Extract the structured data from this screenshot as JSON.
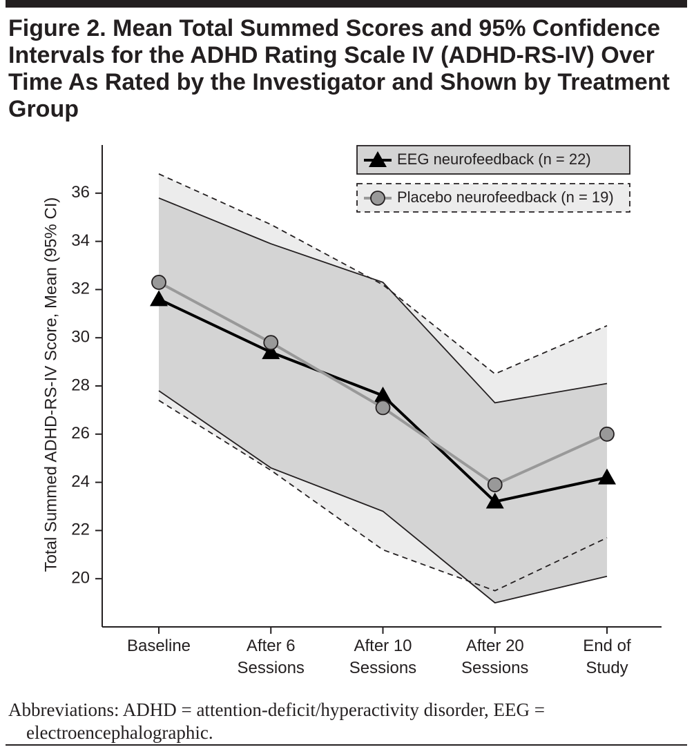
{
  "chart_data": {
    "type": "line",
    "title": "Figure 2. Mean Total Summed Scores and 95% Confidence Intervals for the ADHD Rating Scale IV (ADHD-RS-IV) Over Time As Rated by the Investigator and Shown by Treatment Group",
    "y_label": "Total Summed ADHD-RS-IV Score, Mean (95% CI)",
    "categories": [
      "Baseline",
      "After 6 Sessions",
      "After 10 Sessions",
      "After 20 Sessions",
      "End of Study"
    ],
    "ylim": [
      18,
      38
    ],
    "yticks": [
      20,
      22,
      24,
      26,
      28,
      30,
      32,
      34,
      36
    ],
    "legend": "top-right",
    "series": [
      {
        "name": "EEG neurofeedback (n = 22)",
        "color": "#000000",
        "marker": "triangle",
        "band_color": "#d4d4d4",
        "band_line": "solid",
        "values": [
          31.6,
          29.4,
          27.6,
          23.2,
          24.2
        ],
        "ci_upper": [
          35.8,
          33.9,
          32.3,
          27.3,
          28.1
        ],
        "ci_lower": [
          27.8,
          24.6,
          22.8,
          19.0,
          20.1
        ]
      },
      {
        "name": "Placebo neurofeedback (n = 19)",
        "color": "#999999",
        "marker": "circle",
        "band_color": "#ececec",
        "band_line": "dashed",
        "values": [
          32.3,
          29.8,
          27.1,
          23.9,
          26.0
        ],
        "ci_upper": [
          36.8,
          34.7,
          32.2,
          28.5,
          30.5
        ],
        "ci_lower": [
          27.4,
          24.5,
          21.2,
          19.5,
          21.7
        ]
      }
    ],
    "footnote": "Abbreviations: ADHD = attention-deficit/hyperactivity disorder, EEG = electroencephalographic."
  }
}
